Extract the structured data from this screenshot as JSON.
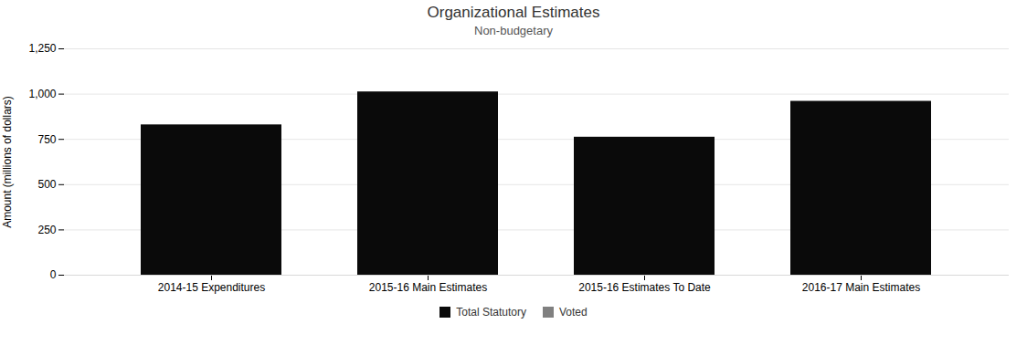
{
  "chart_data": {
    "type": "bar",
    "title": "Organizational Estimates",
    "subtitle": "Non-budgetary",
    "ylabel": "Amount (millions of dollars)",
    "categories": [
      "2014-15 Expenditures",
      "2015-16 Main Estimates",
      "2015-16 Estimates To Date",
      "2016-17 Main Estimates"
    ],
    "series": [
      {
        "name": "Total Statutory",
        "color": "#0a0a0a",
        "values": [
          830,
          1012,
          762,
          960
        ]
      },
      {
        "name": "Voted",
        "color": "#808080",
        "values": [
          0,
          0,
          0,
          0
        ]
      }
    ],
    "stacked": true,
    "ylim": [
      0,
      1250
    ],
    "yticks": [
      0,
      250,
      500,
      750,
      {
        "value": 1000,
        "label": "1,000"
      },
      {
        "value": 1250,
        "label": "1,250"
      }
    ],
    "grid": true,
    "legend": "bottom"
  }
}
